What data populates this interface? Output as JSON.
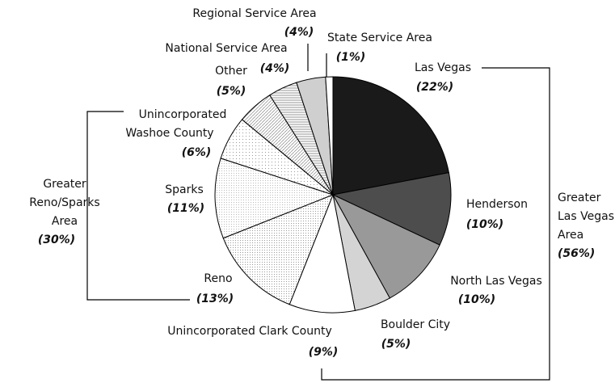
{
  "chart_data": {
    "type": "pie",
    "categories": [
      "Las Vegas",
      "Henderson",
      "North Las Vegas",
      "Boulder City",
      "Unincorporated Clark County",
      "Reno",
      "Sparks",
      "Unincorporated Washoe County",
      "Other",
      "National Service Area",
      "Regional Service Area",
      "State Service Area"
    ],
    "values": [
      22,
      10,
      10,
      5,
      9,
      13,
      11,
      6,
      5,
      4,
      4,
      1
    ],
    "value_labels": [
      "(22%)",
      "(10%)",
      "(10%)",
      "(5%)",
      "(9%)",
      "(13%)",
      "(11%)",
      "(6%)",
      "(5%)",
      "(4%)",
      "(4%)",
      "(1%)"
    ],
    "colors": [
      "#1a1a1a",
      "#4d4d4d",
      "#999999",
      "#d4d4d4",
      "#ffffff",
      "url(#dots-a)",
      "url(#dots-b)",
      "url(#dots-c)",
      "url(#diag)",
      "url(#horiz)",
      "#cfcfcf",
      "#ffffff"
    ],
    "annotations": [
      {
        "lines": [
          "Greater",
          "Las Vegas",
          "Area"
        ],
        "share_label": "(56%)"
      },
      {
        "lines": [
          "Greater",
          "Reno/Sparks",
          "Area"
        ],
        "share_label": "(30%)"
      }
    ]
  }
}
